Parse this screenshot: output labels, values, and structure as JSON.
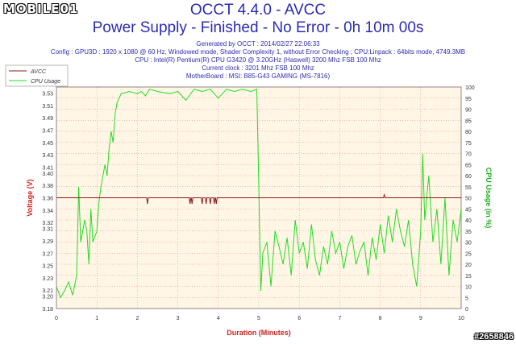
{
  "brand": "MOBILE01",
  "header": {
    "title": "OCCT 4.4.0 - AVCC",
    "subtitle": "Power Supply - Finished - No Error - 0h 10m 00s",
    "generated": "Generated by OCCT : 2014/02/27 22:06:33",
    "config": "Config : GPU3D : 1920 x 1080 @ 60 Hz, Windowed mode, Shader Complexity 1, without Error Checking ; CPU:Linpack : 64bits mode, 4749.3MB",
    "cpu": "CPU : Intel(R) Pentium(R) CPU G3420 @ 3.20GHz (Haswell) 3200 Mhz FSB 100 Mhz",
    "clock": "Current clock : 3201 Mhz FSB 100 Mhz",
    "motherboard": "MotherBoard : MSI: B85-G43 GAMING (MS-7816)"
  },
  "watermark": "#2658846",
  "colors": {
    "avcc": "#8b1a1a",
    "cpu": "#22dd22",
    "plot_bg": "#fff6e6",
    "grid": "#e06060",
    "axis_left": "#cc2222",
    "axis_right": "#22aa22",
    "xlabel": "#cc2222"
  },
  "chart_data": {
    "type": "line",
    "xlabel": "Duration (Minutes)",
    "ylabel": "Voltage (V)",
    "y2label": "CPU Usage (in %)",
    "xlim": [
      0,
      10
    ],
    "ylim": [
      3.18,
      3.54
    ],
    "y2lim": [
      0,
      100
    ],
    "x_ticks": [
      0,
      1,
      2,
      3,
      4,
      5,
      6,
      7,
      8,
      9,
      10
    ],
    "y_ticks": [
      "3.18",
      "3.20",
      "3.21",
      "3.23",
      "3.25",
      "3.27",
      "3.29",
      "3.31",
      "3.32",
      "3.34",
      "3.36",
      "3.38",
      "3.40",
      "3.41",
      "3.43",
      "3.45",
      "3.47",
      "3.49",
      "3.51",
      "3.53"
    ],
    "y2_ticks": [
      0,
      5,
      10,
      15,
      20,
      25,
      30,
      35,
      40,
      45,
      50,
      55,
      60,
      65,
      70,
      75,
      80,
      85,
      90,
      95,
      100
    ],
    "legend": {
      "position": "top-left"
    },
    "grid": true,
    "series": [
      {
        "name": "AVCC",
        "axis": "left",
        "baseline": 3.36,
        "dips": [
          [
            2.25,
            3.35
          ],
          [
            3.3,
            3.35
          ],
          [
            3.35,
            3.35
          ],
          [
            3.6,
            3.35
          ],
          [
            3.7,
            3.35
          ],
          [
            3.8,
            3.35
          ],
          [
            3.9,
            3.35
          ],
          [
            3.95,
            3.35
          ],
          [
            8.1,
            3.365
          ]
        ]
      },
      {
        "name": "CPU Usage",
        "axis": "right",
        "points": [
          [
            0,
            10
          ],
          [
            0.1,
            5
          ],
          [
            0.2,
            8
          ],
          [
            0.3,
            12
          ],
          [
            0.4,
            6
          ],
          [
            0.5,
            15
          ],
          [
            0.55,
            55
          ],
          [
            0.6,
            30
          ],
          [
            0.7,
            40
          ],
          [
            0.75,
            35
          ],
          [
            0.8,
            20
          ],
          [
            0.85,
            45
          ],
          [
            0.9,
            30
          ],
          [
            1.0,
            35
          ],
          [
            1.05,
            48
          ],
          [
            1.1,
            55
          ],
          [
            1.2,
            65
          ],
          [
            1.25,
            60
          ],
          [
            1.3,
            72
          ],
          [
            1.35,
            80
          ],
          [
            1.4,
            75
          ],
          [
            1.45,
            88
          ],
          [
            1.5,
            93
          ],
          [
            1.6,
            97
          ],
          [
            1.8,
            98
          ],
          [
            2.0,
            97
          ],
          [
            2.1,
            98
          ],
          [
            2.2,
            96
          ],
          [
            2.3,
            99
          ],
          [
            2.5,
            98
          ],
          [
            2.8,
            97
          ],
          [
            3.0,
            98
          ],
          [
            3.2,
            94
          ],
          [
            3.4,
            99
          ],
          [
            3.6,
            98
          ],
          [
            3.8,
            99
          ],
          [
            4.0,
            95
          ],
          [
            4.2,
            99
          ],
          [
            4.4,
            98
          ],
          [
            4.6,
            99
          ],
          [
            4.8,
            98
          ],
          [
            4.95,
            99
          ],
          [
            5.0,
            55
          ],
          [
            5.05,
            8
          ],
          [
            5.1,
            25
          ],
          [
            5.2,
            30
          ],
          [
            5.3,
            10
          ],
          [
            5.4,
            35
          ],
          [
            5.5,
            28
          ],
          [
            5.6,
            20
          ],
          [
            5.7,
            32
          ],
          [
            5.8,
            15
          ],
          [
            5.9,
            40
          ],
          [
            6.0,
            25
          ],
          [
            6.1,
            30
          ],
          [
            6.2,
            18
          ],
          [
            6.3,
            38
          ],
          [
            6.4,
            22
          ],
          [
            6.5,
            15
          ],
          [
            6.6,
            28
          ],
          [
            6.7,
            20
          ],
          [
            6.8,
            35
          ],
          [
            6.9,
            25
          ],
          [
            7.0,
            30
          ],
          [
            7.1,
            18
          ],
          [
            7.2,
            28
          ],
          [
            7.3,
            33
          ],
          [
            7.4,
            20
          ],
          [
            7.5,
            26
          ],
          [
            7.6,
            30
          ],
          [
            7.7,
            15
          ],
          [
            7.8,
            32
          ],
          [
            7.9,
            22
          ],
          [
            8.0,
            38
          ],
          [
            8.1,
            25
          ],
          [
            8.2,
            42
          ],
          [
            8.3,
            30
          ],
          [
            8.4,
            45
          ],
          [
            8.5,
            35
          ],
          [
            8.6,
            28
          ],
          [
            8.7,
            40
          ],
          [
            8.8,
            20
          ],
          [
            8.9,
            10
          ],
          [
            9.0,
            35
          ],
          [
            9.05,
            70
          ],
          [
            9.1,
            40
          ],
          [
            9.2,
            60
          ],
          [
            9.3,
            30
          ],
          [
            9.4,
            45
          ],
          [
            9.5,
            20
          ],
          [
            9.6,
            50
          ],
          [
            9.7,
            15
          ],
          [
            9.8,
            40
          ],
          [
            9.9,
            30
          ],
          [
            10.0,
            45
          ]
        ]
      }
    ]
  }
}
